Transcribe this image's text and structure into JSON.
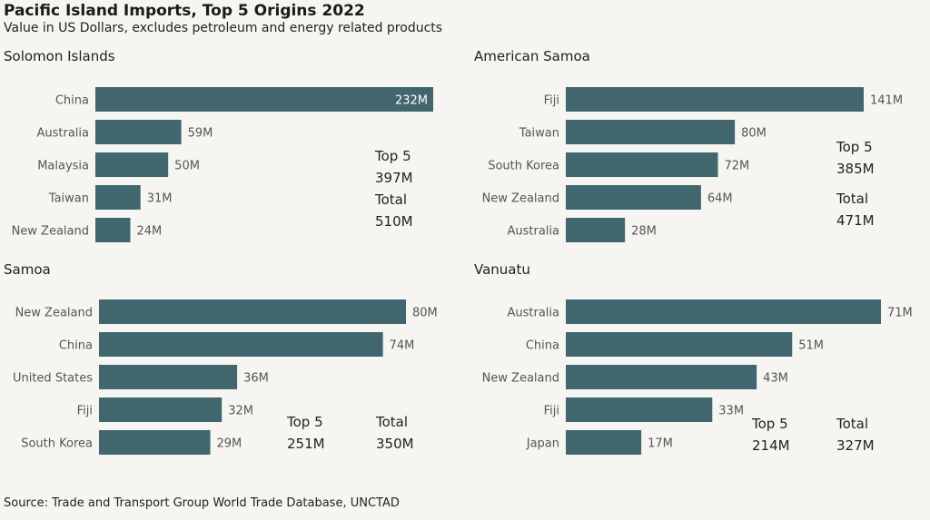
{
  "title": "Pacific Island Imports, Top 5 Origins 2022",
  "subtitle": "Value in US Dollars, excludes petroleum and energy related products",
  "source": "Source: Trade and Transport Group World Trade Database, UNCTAD",
  "colors": {
    "bar": "#41666e",
    "label": "#555555",
    "value_outside": "#555555",
    "value_inside": "#ffffff"
  },
  "panels": [
    {
      "name": "Solomon Islands",
      "top5_label": "Top 5",
      "top5_value": "397M",
      "total_label": "Total",
      "total_value": "510M"
    },
    {
      "name": "American Samoa",
      "top5_label": "Top 5",
      "top5_value": "385M",
      "total_label": "Total",
      "total_value": "471M"
    },
    {
      "name": "Samoa",
      "top5_label": "Top 5",
      "top5_value": "251M",
      "total_label": "Total",
      "total_value": "350M"
    },
    {
      "name": "Vanuatu",
      "top5_label": "Top 5",
      "top5_value": "214M",
      "total_label": "Total",
      "total_value": "327M"
    }
  ],
  "chart_data": [
    {
      "type": "bar",
      "orientation": "horizontal",
      "title": "Solomon Islands",
      "categories": [
        "China",
        "Australia",
        "Malaysia",
        "Taiwan",
        "New Zealand"
      ],
      "values": [
        232,
        59,
        50,
        31,
        24
      ],
      "value_labels": [
        "232M",
        "59M",
        "50M",
        "31M",
        "24M"
      ],
      "unit": "M"
    },
    {
      "type": "bar",
      "orientation": "horizontal",
      "title": "American Samoa",
      "categories": [
        "Fiji",
        "Taiwan",
        "South Korea",
        "New Zealand",
        "Australia"
      ],
      "values": [
        141,
        80,
        72,
        64,
        28
      ],
      "value_labels": [
        "141M",
        "80M",
        "72M",
        "64M",
        "28M"
      ],
      "unit": "M"
    },
    {
      "type": "bar",
      "orientation": "horizontal",
      "title": "Samoa",
      "categories": [
        "New Zealand",
        "China",
        "United States",
        "Fiji",
        "South Korea"
      ],
      "values": [
        80,
        74,
        36,
        32,
        29
      ],
      "value_labels": [
        "80M",
        "74M",
        "36M",
        "32M",
        "29M"
      ],
      "unit": "M"
    },
    {
      "type": "bar",
      "orientation": "horizontal",
      "title": "Vanuatu",
      "categories": [
        "Australia",
        "China",
        "New Zealand",
        "Fiji",
        "Japan"
      ],
      "values": [
        71,
        51,
        43,
        33,
        17
      ],
      "value_labels": [
        "71M",
        "51M",
        "43M",
        "33M",
        "17M"
      ],
      "unit": "M"
    }
  ]
}
